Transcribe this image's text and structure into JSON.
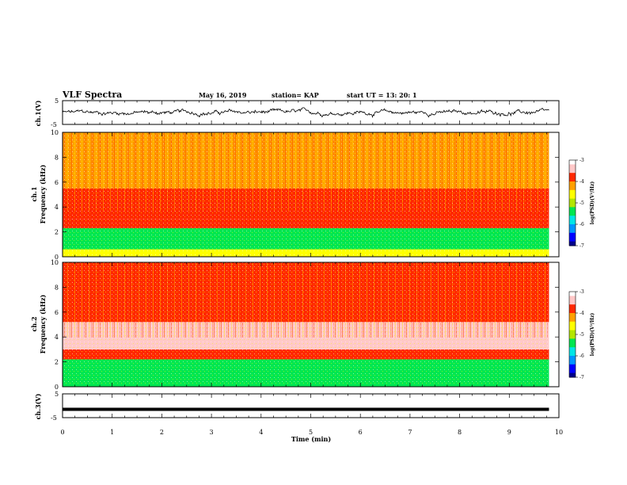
{
  "header": {
    "title": "VLF Spectra",
    "date": "May 16, 2019",
    "station": "station= KAP",
    "start": "start UT =  13: 20: 1"
  },
  "colors": {
    "spectrogram_scale": [
      "#00008b",
      "#0000ff",
      "#0096ff",
      "#00e6e6",
      "#00e650",
      "#b4e600",
      "#ffff00",
      "#ffa000",
      "#ff2800",
      "#ffc8c8",
      "#ffffff"
    ],
    "trace": "#000000"
  },
  "chart_data": [
    {
      "type": "line",
      "panel": "ch1-waveform",
      "ylabel": "ch.1(V)",
      "ylim": [
        -5,
        5
      ],
      "yticks": [
        "5",
        "-5"
      ],
      "xlim": [
        0,
        10
      ],
      "series": [
        {
          "values": "noisy trace around 0 V, amplitude about ±1.5 V, data from 0 to ~9.8 min"
        }
      ]
    },
    {
      "type": "heatmap",
      "panel": "ch1-spectrogram",
      "ylabel": "ch.1 Frequency (kHz)",
      "ylim": [
        0,
        10
      ],
      "yticks": [
        "0",
        "2",
        "4",
        "6",
        "8",
        "10"
      ],
      "xlim": [
        0,
        9.8
      ],
      "colorbar": {
        "label": "log(PSD)(V²/Hz)",
        "range": [
          -7,
          -3
        ],
        "ticks": [
          "-3",
          "-4",
          "-5",
          "-6",
          "-7"
        ]
      },
      "bands": [
        {
          "from_khz": 0.0,
          "to_khz": 0.6,
          "level": -4.8
        },
        {
          "from_khz": 0.6,
          "to_khz": 2.3,
          "level": -5.4
        },
        {
          "from_khz": 2.3,
          "to_khz": 3.0,
          "level": -4.0
        },
        {
          "from_khz": 3.0,
          "to_khz": 5.5,
          "level": -3.7
        },
        {
          "from_khz": 5.5,
          "to_khz": 10.0,
          "level": -4.2
        }
      ]
    },
    {
      "type": "heatmap",
      "panel": "ch2-spectrogram",
      "ylabel": "ch.2 Frequency (kHz)",
      "ylim": [
        0,
        10
      ],
      "yticks": [
        "0",
        "2",
        "4",
        "6",
        "8",
        "10"
      ],
      "xlim": [
        0,
        9.8
      ],
      "colorbar": {
        "label": "log(PSD)(V²/Hz)",
        "range": [
          -7,
          -3
        ],
        "ticks": [
          "-3",
          "-4",
          "-5",
          "-6",
          "-7"
        ]
      },
      "bands": [
        {
          "from_khz": 0.0,
          "to_khz": 2.2,
          "level": -5.5
        },
        {
          "from_khz": 2.2,
          "to_khz": 3.0,
          "level": -4.0
        },
        {
          "from_khz": 3.0,
          "to_khz": 5.2,
          "level": -3.6
        },
        {
          "from_khz": 5.2,
          "to_khz": 10.0,
          "level": -4.0
        }
      ]
    },
    {
      "type": "line",
      "panel": "ch3-waveform",
      "ylabel": "ch.3(V)",
      "ylim": [
        -5,
        5
      ],
      "yticks": [
        "5",
        "-5"
      ],
      "xlim": [
        0,
        10
      ],
      "xlabel": "Time (min)",
      "xticks": [
        "0",
        "1",
        "2",
        "3",
        "4",
        "5",
        "6",
        "7",
        "8",
        "9",
        "10"
      ],
      "series": [
        {
          "values": "flat line at about -1.5 V from 0 to ~9.8 min"
        }
      ]
    }
  ]
}
